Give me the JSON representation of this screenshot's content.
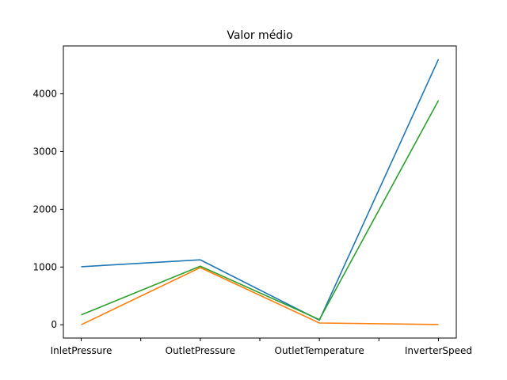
{
  "chart_data": {
    "type": "line",
    "title": "Valor médio",
    "xlabel": "",
    "ylabel": "",
    "categories": [
      "InletPressure",
      "OutletPressure",
      "OutletTemperature",
      "InverterSpeed"
    ],
    "x_tick_labels": [
      "InletPressure",
      "",
      "OutletPressure",
      "",
      "OutletTemperature",
      "",
      "InverterSpeed"
    ],
    "y_ticks": [
      0,
      1000,
      2000,
      3000,
      4000
    ],
    "ylim": [
      -230,
      4830
    ],
    "grid": false,
    "legend": false,
    "series": [
      {
        "color": "#1f77b4",
        "values": [
          1005,
          1125,
          80,
          4600
        ]
      },
      {
        "color": "#ff7f0e",
        "values": [
          0,
          990,
          30,
          5
        ]
      },
      {
        "color": "#2ca02c",
        "values": [
          170,
          1015,
          90,
          3885
        ]
      }
    ]
  }
}
